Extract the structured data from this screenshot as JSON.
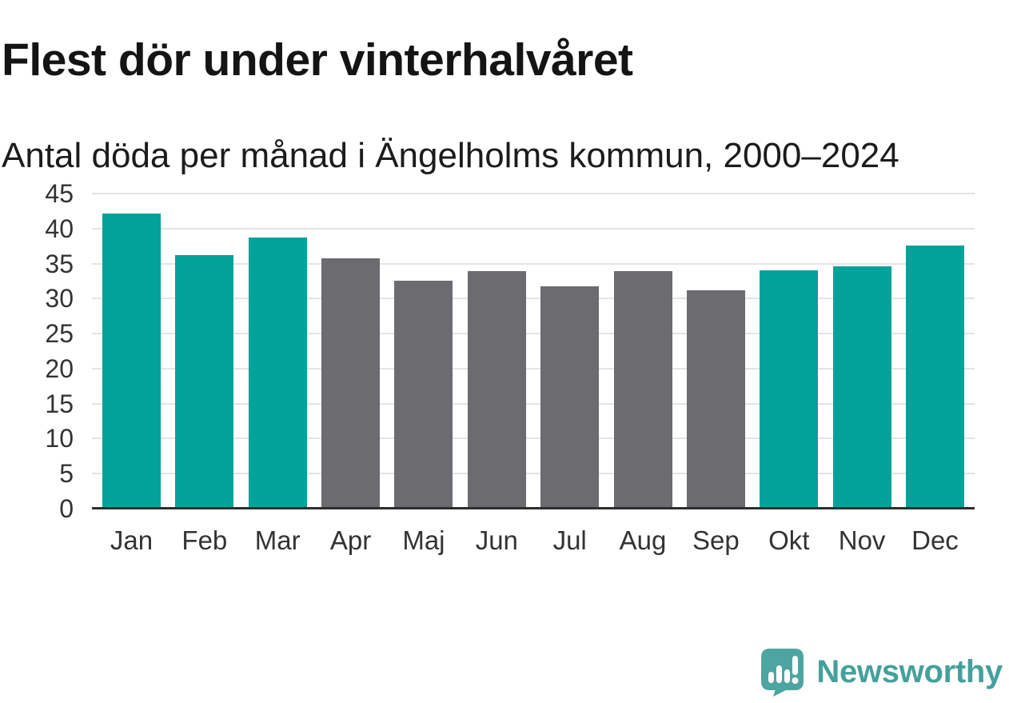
{
  "header": {
    "title": "Flest dör under vinterhalvåret",
    "subtitle": "Antal döda per månad i Ängelholms kommun, 2000–2024"
  },
  "chart_data": {
    "type": "bar",
    "title": "Flest dör under vinterhalvåret",
    "subtitle": "Antal döda per månad i Ängelholms kommun, 2000–2024",
    "categories": [
      "Jan",
      "Feb",
      "Mar",
      "Apr",
      "Maj",
      "Jun",
      "Jul",
      "Aug",
      "Sep",
      "Okt",
      "Nov",
      "Dec"
    ],
    "values": [
      42.1,
      36.2,
      38.7,
      35.7,
      32.5,
      33.9,
      31.7,
      33.9,
      31.2,
      34.0,
      34.6,
      37.6
    ],
    "groups": [
      "winter",
      "winter",
      "winter",
      "summer",
      "summer",
      "summer",
      "summer",
      "summer",
      "summer",
      "winter",
      "winter",
      "winter"
    ],
    "colors": {
      "winter": "#00a299",
      "summer": "#6b6b70"
    },
    "xlabel": "",
    "ylabel": "",
    "ylim": [
      0,
      45
    ],
    "yticks": [
      0,
      5,
      10,
      15,
      20,
      25,
      30,
      35,
      40,
      45
    ],
    "grid": "horizontal",
    "legend": "none",
    "gridline_color": "#e4e4e4",
    "axis_line_color": "#2d2d2d",
    "tick_label_color": "#333333"
  },
  "branding": {
    "name": "Newsworthy",
    "brand_text_color": "#45a09b",
    "logo_bubble_color": "#4da5a1",
    "logo_icon": "newsworthy-speech-bubble-bar-chart-icon"
  }
}
